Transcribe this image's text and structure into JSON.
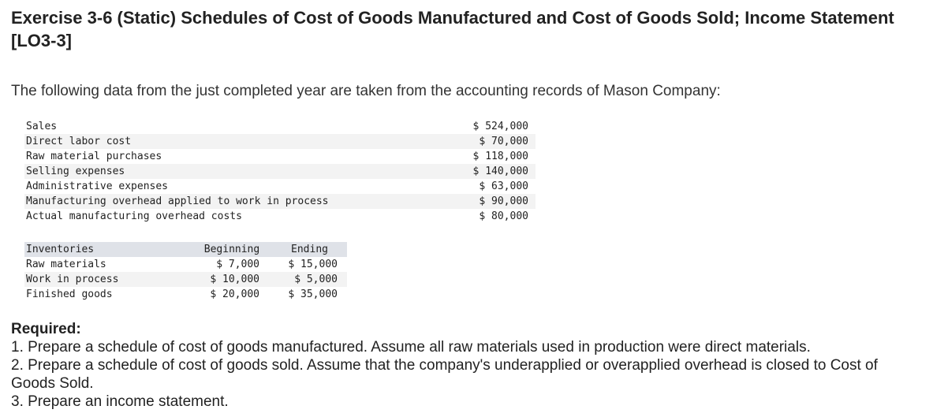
{
  "title": "Exercise 3-6 (Static) Schedules of Cost of Goods Manufactured and Cost of Goods Sold; Income Statement [LO3-3]",
  "intro": "The following data from the just completed year are taken from the accounting records of Mason Company:",
  "data_rows": [
    {
      "label": "Sales",
      "amount": "$ 524,000"
    },
    {
      "label": "Direct labor cost",
      "amount": "$ 70,000"
    },
    {
      "label": "Raw material purchases",
      "amount": "$ 118,000"
    },
    {
      "label": "Selling expenses",
      "amount": "$ 140,000"
    },
    {
      "label": "Administrative expenses",
      "amount": "$ 63,000"
    },
    {
      "label": "Manufacturing overhead applied to work in process",
      "amount": "$ 90,000"
    },
    {
      "label": "Actual manufacturing overhead costs",
      "amount": "$ 80,000"
    }
  ],
  "inventories": {
    "header": {
      "label": "Inventories",
      "beginning": "Beginning",
      "ending": "Ending"
    },
    "rows": [
      {
        "label": "Raw materials",
        "beginning": "$ 7,000",
        "ending": "$ 15,000"
      },
      {
        "label": "Work in process",
        "beginning": "$ 10,000",
        "ending": "$ 5,000"
      },
      {
        "label": "Finished goods",
        "beginning": "$ 20,000",
        "ending": "$ 35,000"
      }
    ]
  },
  "required": {
    "heading": "Required:",
    "items": [
      "1. Prepare a schedule of cost of goods manufactured. Assume all raw materials used in production were direct materials.",
      "2. Prepare a schedule of cost of goods sold. Assume that the company's underapplied or overapplied overhead is closed to Cost of Goods Sold.",
      "3. Prepare an income statement."
    ]
  }
}
